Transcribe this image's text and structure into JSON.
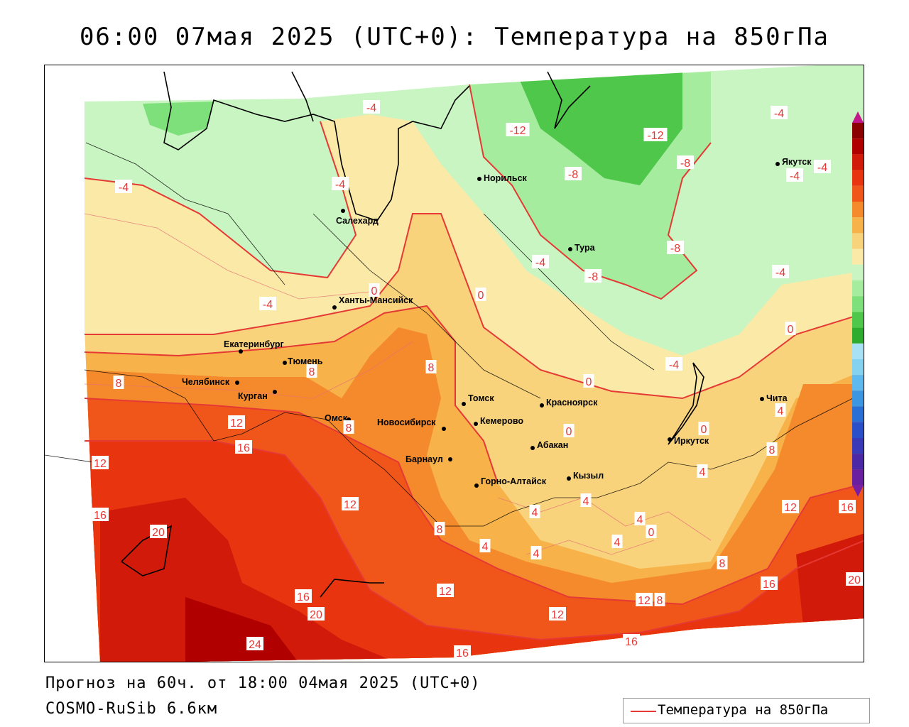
{
  "title": "06:00 07мая 2025 (UTC+0): Температура на 850гПа",
  "footer": {
    "forecast": "Прогноз на 60ч. от 18:00 04мая 2025 (UTC+0)",
    "model": "COSMO-RuSib 6.6км"
  },
  "legend": {
    "label": "Температура на 850гПа",
    "color": "#e53935"
  },
  "colorbar": {
    "levels": [
      "28",
      "24",
      "20",
      "16",
      "12",
      "8",
      "4",
      "0",
      "-4",
      "-8",
      "-12",
      "-16",
      "-20",
      "-24",
      "-28",
      "-32",
      "-36",
      "-40",
      "-44",
      "-48",
      "-52",
      "-56",
      "-60"
    ],
    "colors": [
      "#8b0000",
      "#b00000",
      "#d11a0a",
      "#e8340f",
      "#f0561a",
      "#f48a2c",
      "#f7b24a",
      "#f9d37c",
      "#fbeaa7",
      "#c9f5c2",
      "#a6ec9e",
      "#7ee07a",
      "#4ec74b",
      "#2eac30",
      "#a8e0f5",
      "#84d1f0",
      "#5fb8ee",
      "#3d96e2",
      "#2a6fd6",
      "#2a4fc8",
      "#3a39b8",
      "#4a28a6",
      "#6a1ea0"
    ],
    "top_arrow_color": "#c2188b",
    "bottom_arrow_color": "#7b1fa2"
  },
  "cities": [
    {
      "name": "Салехард"
    },
    {
      "name": "Норильск"
    },
    {
      "name": "Тура"
    },
    {
      "name": "Якутск"
    },
    {
      "name": "Ханты-Мансийск"
    },
    {
      "name": "Екатеринбург"
    },
    {
      "name": "Тюмень"
    },
    {
      "name": "Челябинск"
    },
    {
      "name": "Курган"
    },
    {
      "name": "Омск"
    },
    {
      "name": "Новосибирск"
    },
    {
      "name": "Томск"
    },
    {
      "name": "Кемерово"
    },
    {
      "name": "Красноярск"
    },
    {
      "name": "Абакан"
    },
    {
      "name": "Барнаул"
    },
    {
      "name": "Горно-Алтайск"
    },
    {
      "name": "Кызыл"
    },
    {
      "name": "Иркутск"
    },
    {
      "name": "Чита"
    }
  ],
  "isotherm_labels": [
    {
      "text": "-4"
    },
    {
      "text": "-12"
    },
    {
      "text": "-12"
    },
    {
      "text": "-8"
    },
    {
      "text": "-8"
    },
    {
      "text": "-4"
    },
    {
      "text": "-4"
    },
    {
      "text": "-4"
    },
    {
      "text": "-4"
    },
    {
      "text": "-4"
    },
    {
      "text": "-4"
    },
    {
      "text": "-8"
    },
    {
      "text": "-8"
    },
    {
      "text": "-4"
    },
    {
      "text": "-4"
    },
    {
      "text": "0"
    },
    {
      "text": "0"
    },
    {
      "text": "0"
    },
    {
      "text": "0"
    },
    {
      "text": "0"
    },
    {
      "text": "0"
    },
    {
      "text": "-4"
    },
    {
      "text": "8"
    },
    {
      "text": "8"
    },
    {
      "text": "8"
    },
    {
      "text": "8"
    },
    {
      "text": "8"
    },
    {
      "text": "12"
    },
    {
      "text": "16"
    },
    {
      "text": "12"
    },
    {
      "text": "16"
    },
    {
      "text": "20"
    },
    {
      "text": "12"
    },
    {
      "text": "8"
    },
    {
      "text": "4"
    },
    {
      "text": "4"
    },
    {
      "text": "4"
    },
    {
      "text": "4"
    },
    {
      "text": "4"
    },
    {
      "text": "0"
    },
    {
      "text": "4"
    },
    {
      "text": "4"
    },
    {
      "text": "12"
    },
    {
      "text": "16"
    },
    {
      "text": "8"
    },
    {
      "text": "16"
    },
    {
      "text": "20"
    },
    {
      "text": "16"
    },
    {
      "text": "20"
    },
    {
      "text": "24"
    },
    {
      "text": "16"
    },
    {
      "text": "12"
    },
    {
      "text": "12"
    },
    {
      "text": "12"
    },
    {
      "text": "8"
    },
    {
      "text": "16"
    },
    {
      "text": "8"
    },
    {
      "text": "4"
    }
  ]
}
